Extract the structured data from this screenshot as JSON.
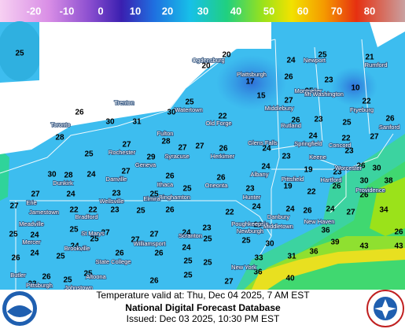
{
  "colorbar": {
    "labels": [
      -20,
      -10,
      0,
      10,
      20,
      30,
      40,
      50,
      60,
      70,
      80
    ]
  },
  "map": {
    "temperatures": [
      25,
      20,
      20,
      25,
      24,
      21,
      26,
      17,
      23,
      15,
      25,
      10,
      25,
      27,
      22,
      26,
      30,
      31,
      30,
      22,
      23,
      26,
      25,
      26,
      28,
      27,
      28,
      27,
      27,
      26,
      24,
      24,
      22,
      27,
      25,
      29,
      23,
      23,
      26,
      30,
      30,
      28,
      24,
      27,
      26,
      26,
      24,
      19,
      23,
      38,
      27,
      24,
      23,
      25,
      25,
      23,
      19,
      22,
      26,
      30,
      27,
      22,
      22,
      23,
      25,
      26,
      22,
      24,
      24,
      26,
      24,
      27,
      26,
      34,
      25,
      24,
      25,
      27,
      27,
      24,
      23,
      26,
      36,
      26,
      24,
      24,
      25,
      27,
      24,
      25,
      25,
      30,
      39,
      43,
      43,
      26,
      25,
      26,
      26,
      25,
      25,
      33,
      31,
      36,
      26,
      25,
      25,
      25,
      27,
      36,
      40,
      23,
      26
    ],
    "places": [
      "Ogdensburg",
      "Plattsburgh",
      "Newport",
      "Montpelier",
      "Mt Washington",
      "Rumford",
      "Fryeburg",
      "Sanford",
      "Middlebury",
      "Rutland",
      "Springfield",
      "Concord",
      "Keene",
      "Trenton",
      "Toronto",
      "Watertown",
      "Old Forge",
      "Fulton",
      "Rochester",
      "Syracuse",
      "Herkimer",
      "Glens Falls",
      "Albany",
      "Geneva",
      "Dunkirk",
      "Danville",
      "Ithaca",
      "Oneonta",
      "Binghamton",
      "Elmira",
      "Hunter",
      "Pittsfield",
      "Hartford",
      "Worcester",
      "Providence",
      "Erie",
      "Jamestown",
      "Bradford",
      "Wellsville",
      "Meadville",
      "St Marys",
      "Williamsport",
      "Scranton",
      "Poughkeepsie",
      "Newburgh",
      "Danbury",
      "Middletown",
      "New Haven",
      "Mercer",
      "Brookville",
      "State College",
      "Altoona",
      "Johnstown",
      "Pittsburgh",
      "Butler",
      "New York"
    ]
  },
  "footer": {
    "valid": "Temperature valid at: Thu, Dec 04 2025, 7 AM EST",
    "title": "National Digital Forecast Database",
    "issued": "Issued: Dec 03 2025, 10:30 PM EST"
  }
}
